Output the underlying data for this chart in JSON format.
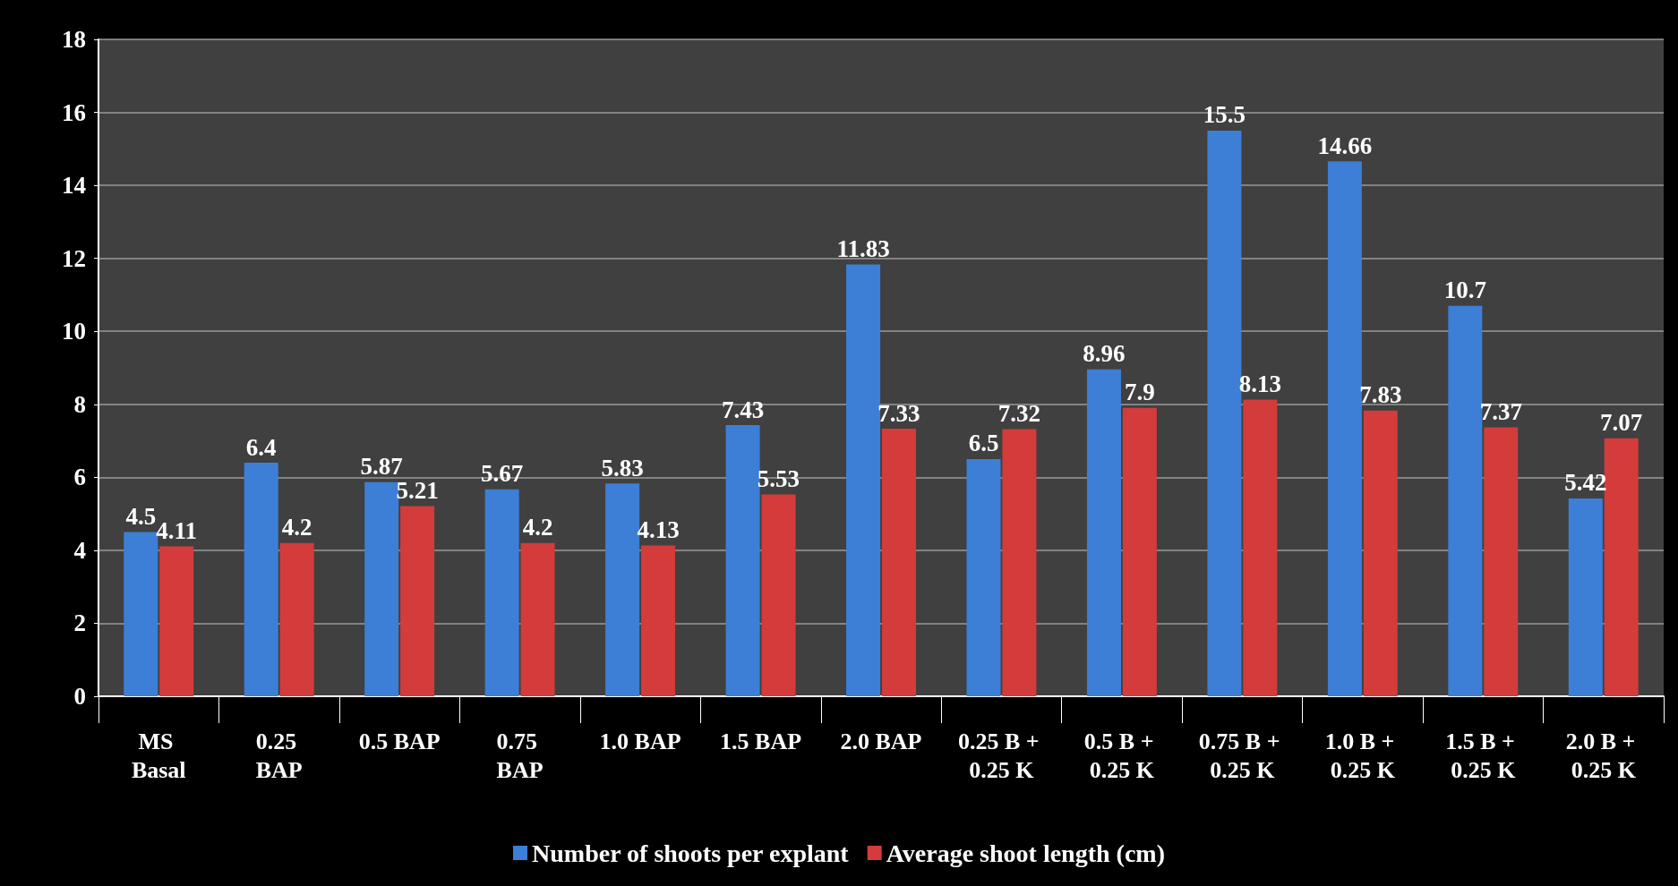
{
  "chart_data": {
    "type": "bar",
    "categories": [
      "MS Basal",
      "0.25 BAP",
      "0.5 BAP",
      "0.75 BAP",
      "1.0 BAP",
      "1.5 BAP",
      "2.0 BAP",
      "0.25 B + 0.25 K",
      "0.5 B + 0.25 K",
      "0.75 B + 0.25 K",
      "1.0 B + 0.25 K",
      "1.5 B + 0.25 K",
      "2.0 B + 0.25 K"
    ],
    "series": [
      {
        "name": "Number of shoots per explant",
        "color": "#3d7fd6",
        "values": [
          4.5,
          6.4,
          5.87,
          5.67,
          5.83,
          7.43,
          11.83,
          6.5,
          8.96,
          15.5,
          14.66,
          10.7,
          5.42
        ]
      },
      {
        "name": "Average shoot length (cm)",
        "color": "#d43b3b",
        "values": [
          4.11,
          4.2,
          5.21,
          4.2,
          4.13,
          5.53,
          7.33,
          7.32,
          7.9,
          8.13,
          7.83,
          7.37,
          7.07
        ]
      }
    ],
    "ylim": [
      0,
      18
    ],
    "yticks": [
      0,
      2,
      4,
      6,
      8,
      10,
      12,
      14,
      16,
      18
    ],
    "grid": "y",
    "legend": "bottom",
    "data_labels": true
  }
}
